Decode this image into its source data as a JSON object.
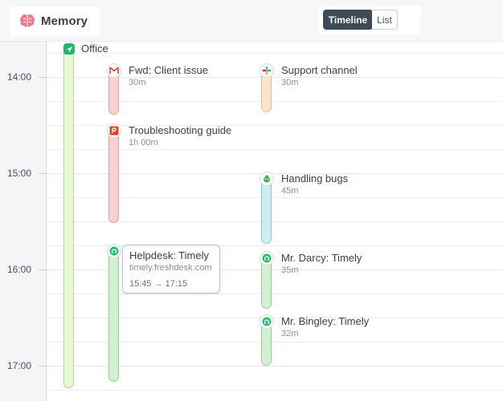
{
  "app": {
    "title": "Memory",
    "logo_icon": "brain-icon",
    "logo_color": "#f07a8a"
  },
  "view_toggle": {
    "timeline_label": "Timeline",
    "list_label": "List",
    "active": "Timeline"
  },
  "hours": [
    "14:00",
    "15:00",
    "16:00",
    "17:00"
  ],
  "events": {
    "office": {
      "title": "Office",
      "icon": "location-icon"
    },
    "fwd": {
      "title": "Fwd: Client issue",
      "duration": "30m",
      "icon": "gmail-icon"
    },
    "troubleshooting": {
      "title": "Troubleshooting guide",
      "duration": "1h 00m",
      "icon": "powerpoint-icon"
    },
    "helpdesk": {
      "title": "Helpdesk: Timely",
      "icon": "freshdesk-icon"
    },
    "support": {
      "title": "Support channel",
      "duration": "30m",
      "icon": "slack-icon"
    },
    "bugs": {
      "title": "Handling bugs",
      "duration": "45m",
      "icon": "bug-icon"
    },
    "darcy": {
      "title": "Mr. Darcy: Timely",
      "duration": "35m",
      "icon": "freshdesk-icon"
    },
    "bingley": {
      "title": "Mr. Bingley: Timely",
      "duration": "32m",
      "icon": "freshdesk-icon"
    }
  },
  "tooltip": {
    "title": "Helpdesk: Timely",
    "url": "timely.freshdesk.com",
    "time_range": "15:45 → 17:15"
  },
  "colors": {
    "accent_dark": "#3f4a57",
    "green": "#22b573",
    "red": "#e79a9a",
    "blue": "#88cbdb"
  }
}
